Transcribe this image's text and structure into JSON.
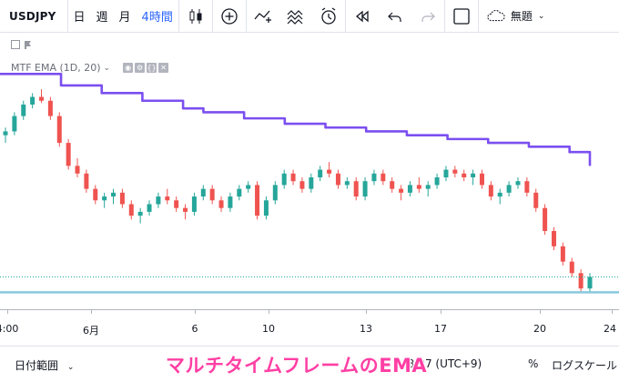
{
  "toolbar": {
    "symbol": "USDJPY",
    "intervals": [
      "日",
      "週",
      "月",
      "4時間"
    ],
    "active_interval": "4時間",
    "icons": [
      "candles-icon",
      "add-indicator-icon",
      "indicators-icon",
      "compare-icon",
      "alert-icon",
      "replay-icon",
      "undo-icon",
      "redo-icon",
      "layout-icon",
      "cloud-icon"
    ],
    "layout_name": "無題"
  },
  "study": {
    "label": "MTF EMA (1D, 20)"
  },
  "colors": {
    "up": "#26a69a",
    "down": "#ef5350",
    "ema": "#7b4ff0",
    "price_line": "#26a69a",
    "hline": "#88c8de",
    "overlay": "#ff3fa4"
  },
  "xaxis": {
    "ticks": [
      "4:00",
      "6月",
      "6",
      "10",
      "13",
      "17",
      "20",
      "24"
    ]
  },
  "bottombar": {
    "range_label": "日付範囲",
    "time": "48:07 (UTC+9)",
    "percent": "%",
    "log_scale": "ログスケール"
  },
  "overlay_text": "マルチタイムフレームのEMA",
  "chart_data": {
    "type": "line",
    "series": [
      {
        "name": "MTF EMA (1D, 20)",
        "values": [
          110.8,
          110.8,
          110.8,
          110.65,
          110.65,
          110.55,
          110.55,
          110.45,
          110.45,
          110.35,
          110.3,
          110.3,
          110.22,
          110.22,
          110.15,
          110.15,
          110.1,
          110.1,
          110.05,
          110.05,
          110.0,
          110.0,
          109.95,
          109.95,
          109.9,
          109.9,
          109.85,
          109.85,
          109.78,
          109.6
        ]
      }
    ],
    "candles": [
      [
        110.0,
        110.1,
        109.9,
        110.05
      ],
      [
        110.05,
        110.3,
        110.0,
        110.25
      ],
      [
        110.25,
        110.45,
        110.2,
        110.4
      ],
      [
        110.4,
        110.55,
        110.35,
        110.5
      ],
      [
        110.5,
        110.6,
        110.42,
        110.45
      ],
      [
        110.45,
        110.5,
        110.2,
        110.25
      ],
      [
        110.25,
        110.3,
        109.85,
        109.9
      ],
      [
        109.9,
        109.95,
        109.55,
        109.6
      ],
      [
        109.6,
        109.7,
        109.45,
        109.5
      ],
      [
        109.5,
        109.55,
        109.25,
        109.3
      ],
      [
        109.3,
        109.35,
        109.1,
        109.15
      ],
      [
        109.15,
        109.25,
        109.05,
        109.2
      ],
      [
        109.2,
        109.3,
        109.1,
        109.25
      ],
      [
        109.25,
        109.3,
        109.05,
        109.1
      ],
      [
        109.1,
        109.15,
        108.9,
        108.95
      ],
      [
        108.95,
        109.05,
        108.85,
        109.0
      ],
      [
        109.0,
        109.15,
        108.95,
        109.1
      ],
      [
        109.1,
        109.25,
        109.05,
        109.2
      ],
      [
        109.2,
        109.3,
        109.1,
        109.15
      ],
      [
        109.15,
        109.2,
        109.0,
        109.05
      ],
      [
        109.05,
        109.1,
        108.9,
        109.0
      ],
      [
        109.0,
        109.25,
        108.95,
        109.2
      ],
      [
        109.2,
        109.35,
        109.15,
        109.3
      ],
      [
        109.3,
        109.35,
        109.1,
        109.15
      ],
      [
        109.15,
        109.2,
        109.0,
        109.05
      ],
      [
        109.05,
        109.25,
        109.0,
        109.2
      ],
      [
        109.2,
        109.35,
        109.15,
        109.3
      ],
      [
        109.3,
        109.4,
        109.25,
        109.35
      ],
      [
        109.35,
        109.4,
        108.9,
        108.95
      ],
      [
        108.95,
        109.2,
        108.9,
        109.15
      ],
      [
        109.15,
        109.4,
        109.1,
        109.35
      ],
      [
        109.35,
        109.55,
        109.3,
        109.5
      ],
      [
        109.5,
        109.55,
        109.35,
        109.4
      ],
      [
        109.4,
        109.45,
        109.25,
        109.3
      ],
      [
        109.3,
        109.5,
        109.25,
        109.45
      ],
      [
        109.45,
        109.6,
        109.4,
        109.55
      ],
      [
        109.55,
        109.65,
        109.45,
        109.5
      ],
      [
        109.5,
        109.55,
        109.3,
        109.35
      ],
      [
        109.35,
        109.45,
        109.3,
        109.4
      ],
      [
        109.4,
        109.45,
        109.15,
        109.2
      ],
      [
        109.2,
        109.45,
        109.15,
        109.4
      ],
      [
        109.4,
        109.55,
        109.35,
        109.5
      ],
      [
        109.5,
        109.55,
        109.35,
        109.4
      ],
      [
        109.4,
        109.45,
        109.25,
        109.3
      ],
      [
        109.3,
        109.35,
        109.15,
        109.25
      ],
      [
        109.25,
        109.4,
        109.2,
        109.35
      ],
      [
        109.35,
        109.45,
        109.25,
        109.3
      ],
      [
        109.3,
        109.4,
        109.2,
        109.35
      ],
      [
        109.35,
        109.5,
        109.3,
        109.45
      ],
      [
        109.45,
        109.6,
        109.4,
        109.55
      ],
      [
        109.55,
        109.6,
        109.45,
        109.5
      ],
      [
        109.5,
        109.55,
        109.4,
        109.45
      ],
      [
        109.45,
        109.55,
        109.35,
        109.5
      ],
      [
        109.5,
        109.55,
        109.3,
        109.35
      ],
      [
        109.35,
        109.4,
        109.15,
        109.2
      ],
      [
        109.2,
        109.3,
        109.1,
        109.25
      ],
      [
        109.25,
        109.4,
        109.2,
        109.35
      ],
      [
        109.35,
        109.45,
        109.3,
        109.4
      ],
      [
        109.4,
        109.45,
        109.2,
        109.25
      ],
      [
        109.25,
        109.3,
        109.0,
        109.05
      ],
      [
        109.05,
        109.1,
        108.7,
        108.75
      ],
      [
        108.75,
        108.8,
        108.5,
        108.55
      ],
      [
        108.55,
        108.6,
        108.3,
        108.35
      ],
      [
        108.35,
        108.4,
        108.15,
        108.2
      ],
      [
        108.2,
        108.25,
        107.95,
        108.0
      ],
      [
        108.0,
        108.2,
        107.95,
        108.15
      ]
    ],
    "ylim": [
      107.8,
      111.1
    ],
    "price_line": 108.15,
    "hline": 107.95
  }
}
